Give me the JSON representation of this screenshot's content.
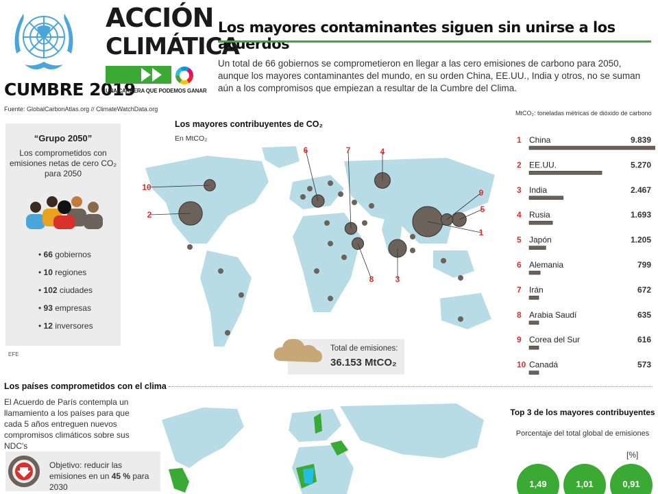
{
  "header": {
    "cumbre": "CUMBRE 2019",
    "accion_line1": "ACCIÓN",
    "accion_line2": "CLIMÁTICA",
    "tagline": "UNA CARRERA QUE PODEMOS GANAR",
    "title": "Los mayores contaminantes siguen sin unirse a los acuerdos",
    "intro": "Un total de 66 gobiernos se comprometieron en llegar a las cero emisiones de carbono para 2050, aunque los mayores contaminantes del mundo, en su orden China, EE.UU., India y otros, no se suman aún a los compromisos que empiezan a resultar de la Cumbre del Clima.",
    "source": "Fuente: GlobalCarbonAtlas.org // ClimateWatchData.org",
    "units": "MtCO₂: toneladas métricas de dióxido de carbono"
  },
  "grupo": {
    "title": "“Grupo 2050”",
    "desc": "Los comprometidos con emisiones netas de cero CO₂ para 2050",
    "stats": [
      {
        "num": "66",
        "label": "gobiernos"
      },
      {
        "num": "10",
        "label": "regiones"
      },
      {
        "num": "102",
        "label": "ciudades"
      },
      {
        "num": "93",
        "label": "empresas"
      },
      {
        "num": "12",
        "label": "inversores"
      }
    ]
  },
  "efe": "EFE",
  "map": {
    "title": "Los mayores contribuyentes de CO₂",
    "subtitle": "En MtCO₂",
    "total_label": "Total de emisiones:",
    "total_value": "36.153 MtCO₂"
  },
  "chart_data": {
    "type": "bar",
    "title": "Los mayores contribuyentes de CO₂",
    "ylabel": "MtCO₂",
    "categories": [
      "China",
      "EE.UU.",
      "India",
      "Rusia",
      "Japón",
      "Alemania",
      "Irán",
      "Arabia Saudí",
      "Corea del Sur",
      "Canadá"
    ],
    "ranks": [
      "1",
      "2",
      "3",
      "4",
      "5",
      "6",
      "7",
      "8",
      "9",
      "10"
    ],
    "values": [
      9839,
      5270,
      2467,
      1693,
      1205,
      799,
      672,
      635,
      616,
      573
    ],
    "value_labels": [
      "9.839",
      "5.270",
      "2.467",
      "1.693",
      "1.205",
      "799",
      "672",
      "635",
      "616",
      "573"
    ],
    "ylim": [
      0,
      9839
    ],
    "bar_color": "#6d625a",
    "rank_color": "#d9302c"
  },
  "section2": {
    "title": "Los países comprometidos con el clima",
    "text": "El Acuerdo de París contempla un llamamiento a los países para que cada 5 años entreguen nuevos compromisos climáticos sobre sus NDC's",
    "objective_prefix": "Objetivo: reducir las emisiones en un ",
    "objective_pct": "45 %",
    "objective_suffix": " para 2030"
  },
  "top3": {
    "title": "Top 3 de los mayores contribuyentes",
    "subtitle": "Porcentaje del total global de emisiones",
    "unit": "[%]",
    "values": [
      "1,49",
      "1,01",
      "0,91"
    ]
  },
  "colors": {
    "accent": "#3aaa35",
    "map": "#b7dce6",
    "bubble": "#6d625a",
    "rank": "#d9302c",
    "un_blue": "#4aa6da"
  }
}
